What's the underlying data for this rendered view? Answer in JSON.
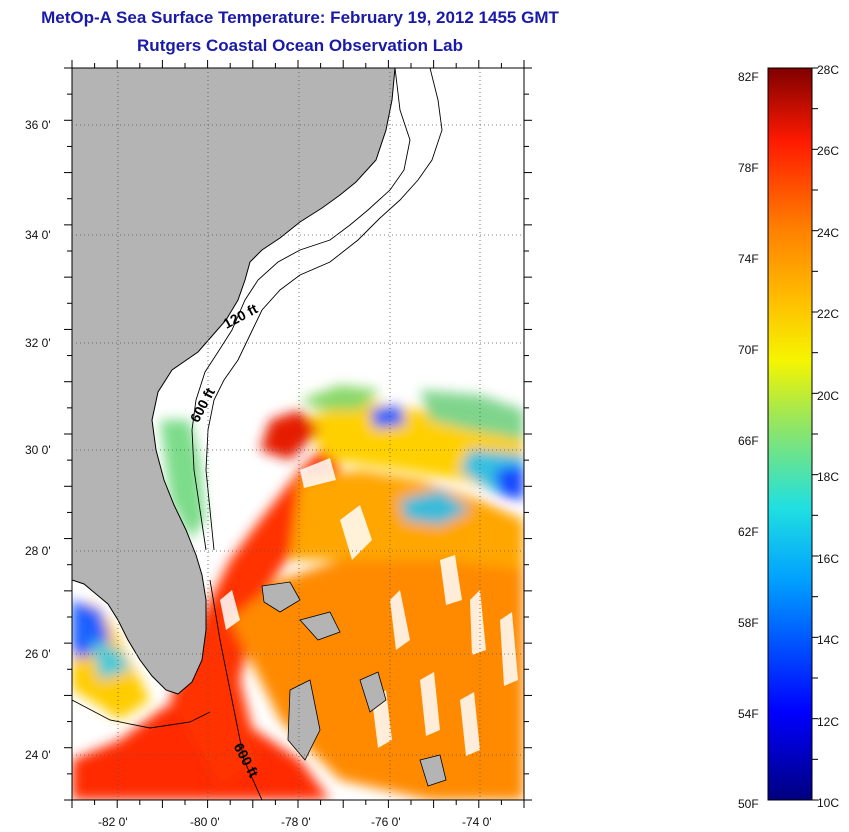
{
  "header": {
    "title": "MetOp-A Sea Surface Temperature:  February 19, 2012 1455 GMT",
    "subtitle": "Rutgers Coastal Ocean Observation Lab"
  },
  "map": {
    "longitude_ticks": [
      "-82 0'",
      "-80 0'",
      "-78 0'",
      "-76 0'",
      "-74 0'"
    ],
    "latitude_ticks": [
      "36 0'",
      "34 0'",
      "32 0'",
      "30 0'",
      "28 0'",
      "26 0'",
      "24 0'"
    ],
    "extent": {
      "lon_min": -83,
      "lon_max": -73,
      "lat_min": 23,
      "lat_max": 37
    },
    "contour_labels": [
      "120 ft",
      "600 ft",
      "600 ft"
    ],
    "colors": {
      "land": "#b4b4b4",
      "no_data": "#ffffff"
    }
  },
  "colorbar": {
    "fahrenheit_labels": [
      "82F",
      "78F",
      "74F",
      "70F",
      "66F",
      "62F",
      "58F",
      "54F",
      "50F"
    ],
    "celsius_labels": [
      "28C",
      "26C",
      "24C",
      "22C",
      "20C",
      "18C",
      "16C",
      "14C",
      "12C",
      "10C"
    ],
    "min_c": 10,
    "max_c": 28,
    "colormap": "jet"
  }
}
